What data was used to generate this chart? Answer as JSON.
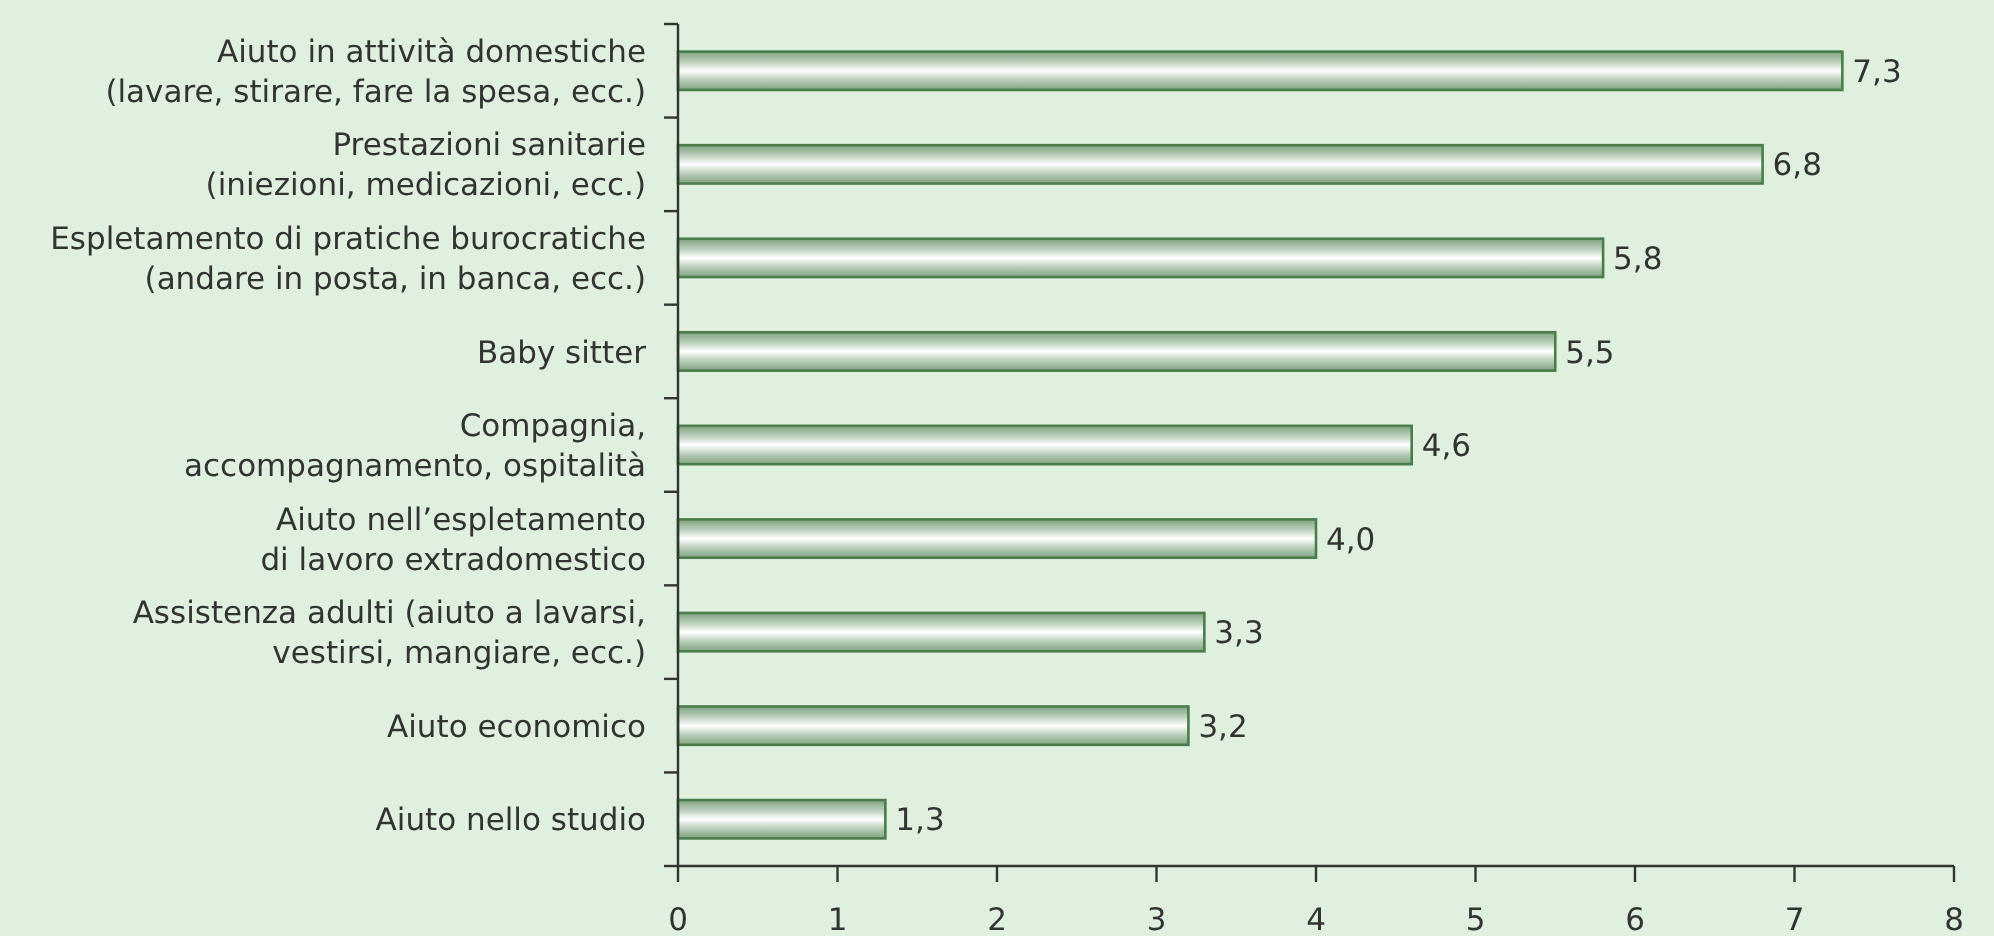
{
  "chart_data": {
    "type": "bar",
    "orientation": "horizontal",
    "categories": [
      "Aiuto in attività domestiche\n(lavare, stirare, fare la spesa, ecc.)",
      "Prestazioni sanitarie\n(iniezioni, medicazioni, ecc.)",
      "Espletamento di pratiche burocratiche\n(andare in posta, in banca, ecc.)",
      "Baby sitter",
      "Compagnia,\naccompagnamento, ospitalità",
      "Aiuto nell’espletamento\ndi lavoro extradomestico",
      "Assistenza adulti (aiuto a lavarsi,\nvestirsi, mangiare, ecc.)",
      "Aiuto economico",
      "Aiuto nello studio"
    ],
    "values": [
      7.3,
      6.8,
      5.8,
      5.5,
      4.6,
      4.0,
      3.3,
      3.2,
      1.3
    ],
    "value_labels": [
      "7,3",
      "6,8",
      "5,8",
      "5,5",
      "4,6",
      "4,0",
      "3,3",
      "3,2",
      "1,3"
    ],
    "color": "#4a7d4a",
    "xlim": [
      0,
      8
    ],
    "xticks": [
      0,
      1,
      2,
      3,
      4,
      5,
      6,
      7,
      8
    ]
  }
}
